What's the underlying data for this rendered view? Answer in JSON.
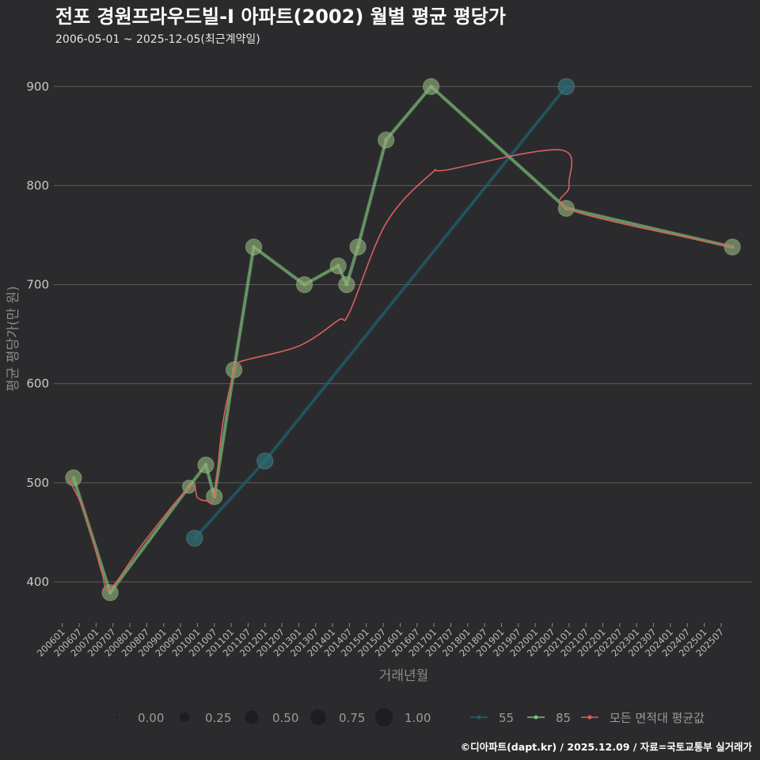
{
  "title": "전포 경원프라우드빌-I 아파트(2002) 월별 평균 평당가",
  "subtitle": "2006-05-01 ~ 2025-12-05(최근계약일)",
  "footer": "©디아파트(dapt.kr) / 2025.12.09 / 자료=국토교통부 실거래가",
  "colors": {
    "background": "#2b2b2d",
    "series_55": "#1f5f6b",
    "series_55_marker": "#2f6f74",
    "series_85": "#7fc07a",
    "series_85_marker": "#8fae78",
    "average": "#d9605e"
  },
  "chart_data": {
    "type": "line",
    "title": "전포 경원프라우드빌-I 아파트(2002) 월별 평균 평당가",
    "xlabel": "거래년월",
    "ylabel": "평균 평당가(만 원)",
    "ylim": [
      360,
      925
    ],
    "xlim": [
      "2005-10",
      "2026-06"
    ],
    "yticks": [
      400,
      500,
      600,
      700,
      800,
      900
    ],
    "xticks": [
      "200601",
      "200607",
      "200701",
      "200707",
      "200801",
      "200807",
      "200901",
      "200907",
      "201001",
      "201007",
      "201101",
      "201107",
      "201201",
      "201207",
      "201301",
      "201307",
      "201401",
      "201407",
      "201501",
      "201507",
      "201601",
      "201607",
      "201701",
      "201707",
      "201801",
      "201807",
      "201901",
      "201907",
      "202001",
      "202007",
      "202101",
      "202107",
      "202201",
      "202207",
      "202301",
      "202307",
      "202401",
      "202407",
      "202501",
      "202507"
    ],
    "size_legend": {
      "title": "",
      "values": [
        "0.00",
        "0.25",
        "0.50",
        "0.75",
        "1.00"
      ]
    },
    "series": [
      {
        "name": "55",
        "points": [
          {
            "x": "2009-12",
            "y": 444,
            "size": 0.7
          },
          {
            "x": "2012-01",
            "y": 522,
            "size": 0.7
          },
          {
            "x": "2020-12",
            "y": 900,
            "size": 0.7
          }
        ]
      },
      {
        "name": "85",
        "points": [
          {
            "x": "2006-05",
            "y": 505,
            "size": 0.7
          },
          {
            "x": "2007-06",
            "y": 389,
            "size": 0.7
          },
          {
            "x": "2009-10",
            "y": 496,
            "size": 0.4
          },
          {
            "x": "2010-04",
            "y": 518,
            "size": 0.7
          },
          {
            "x": "2010-07",
            "y": 486,
            "size": 0.7
          },
          {
            "x": "2011-02",
            "y": 614,
            "size": 0.7
          },
          {
            "x": "2011-09",
            "y": 738,
            "size": 0.7
          },
          {
            "x": "2013-03",
            "y": 700,
            "size": 0.7
          },
          {
            "x": "2014-03",
            "y": 719,
            "size": 0.7
          },
          {
            "x": "2014-06",
            "y": 700,
            "size": 0.7
          },
          {
            "x": "2014-10",
            "y": 738,
            "size": 0.7
          },
          {
            "x": "2015-08",
            "y": 846,
            "size": 0.7
          },
          {
            "x": "2016-12",
            "y": 900,
            "size": 0.7
          },
          {
            "x": "2020-12",
            "y": 777,
            "size": 0.7
          },
          {
            "x": "2025-11",
            "y": 738,
            "size": 0.7
          }
        ]
      },
      {
        "name": "모든 면적대 평균값",
        "points": [
          {
            "x": "2006-03",
            "y": 505
          },
          {
            "x": "2006-09",
            "y": 470
          },
          {
            "x": "2007-03",
            "y": 410
          },
          {
            "x": "2007-06",
            "y": 393
          },
          {
            "x": "2008-06",
            "y": 440
          },
          {
            "x": "2009-10",
            "y": 495
          },
          {
            "x": "2010-01",
            "y": 485
          },
          {
            "x": "2010-04",
            "y": 482
          },
          {
            "x": "2010-07",
            "y": 487
          },
          {
            "x": "2010-10",
            "y": 560
          },
          {
            "x": "2011-02",
            "y": 612
          },
          {
            "x": "2011-04",
            "y": 622
          },
          {
            "x": "2013-01",
            "y": 638
          },
          {
            "x": "2014-03",
            "y": 664
          },
          {
            "x": "2014-07",
            "y": 672
          },
          {
            "x": "2015-08",
            "y": 762
          },
          {
            "x": "2016-12",
            "y": 812
          },
          {
            "x": "2017-06",
            "y": 816
          },
          {
            "x": "2020-10",
            "y": 836
          },
          {
            "x": "2021-01",
            "y": 800
          },
          {
            "x": "2021-02",
            "y": 775
          },
          {
            "x": "2025-11",
            "y": 738
          }
        ]
      }
    ]
  },
  "legend": {
    "size_items": [
      "0.00",
      "0.25",
      "0.50",
      "0.75",
      "1.00"
    ],
    "line_items": [
      "55",
      "85",
      "모든 면적대 평균값"
    ]
  }
}
